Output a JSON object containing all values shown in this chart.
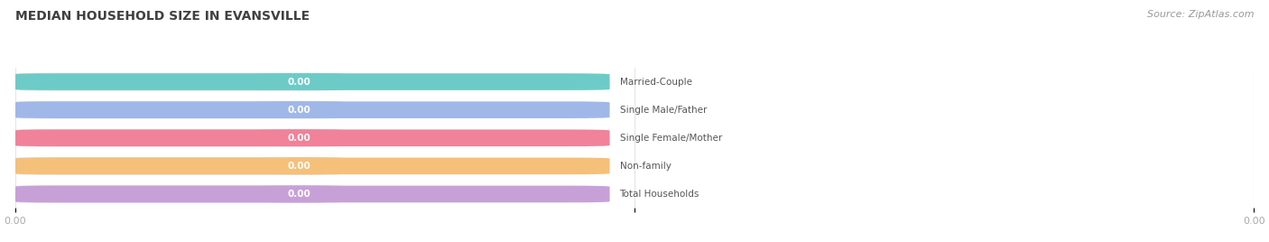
{
  "title": "MEDIAN HOUSEHOLD SIZE IN EVANSVILLE",
  "source": "Source: ZipAtlas.com",
  "categories": [
    "Married-Couple",
    "Single Male/Father",
    "Single Female/Mother",
    "Non-family",
    "Total Households"
  ],
  "values": [
    0.0,
    0.0,
    0.0,
    0.0,
    0.0
  ],
  "bar_colors": [
    "#6dcbc7",
    "#a0b8e8",
    "#f0829a",
    "#f5c07a",
    "#c8a0d8"
  ],
  "bar_bg_color": "#f5f5f5",
  "bar_border_color": "#e0e0e0",
  "label_color": "#555555",
  "value_label_color": "#ffffff",
  "title_color": "#404040",
  "source_color": "#999999",
  "background_color": "#ffffff",
  "figsize": [
    14.06,
    2.68
  ],
  "dpi": 100
}
